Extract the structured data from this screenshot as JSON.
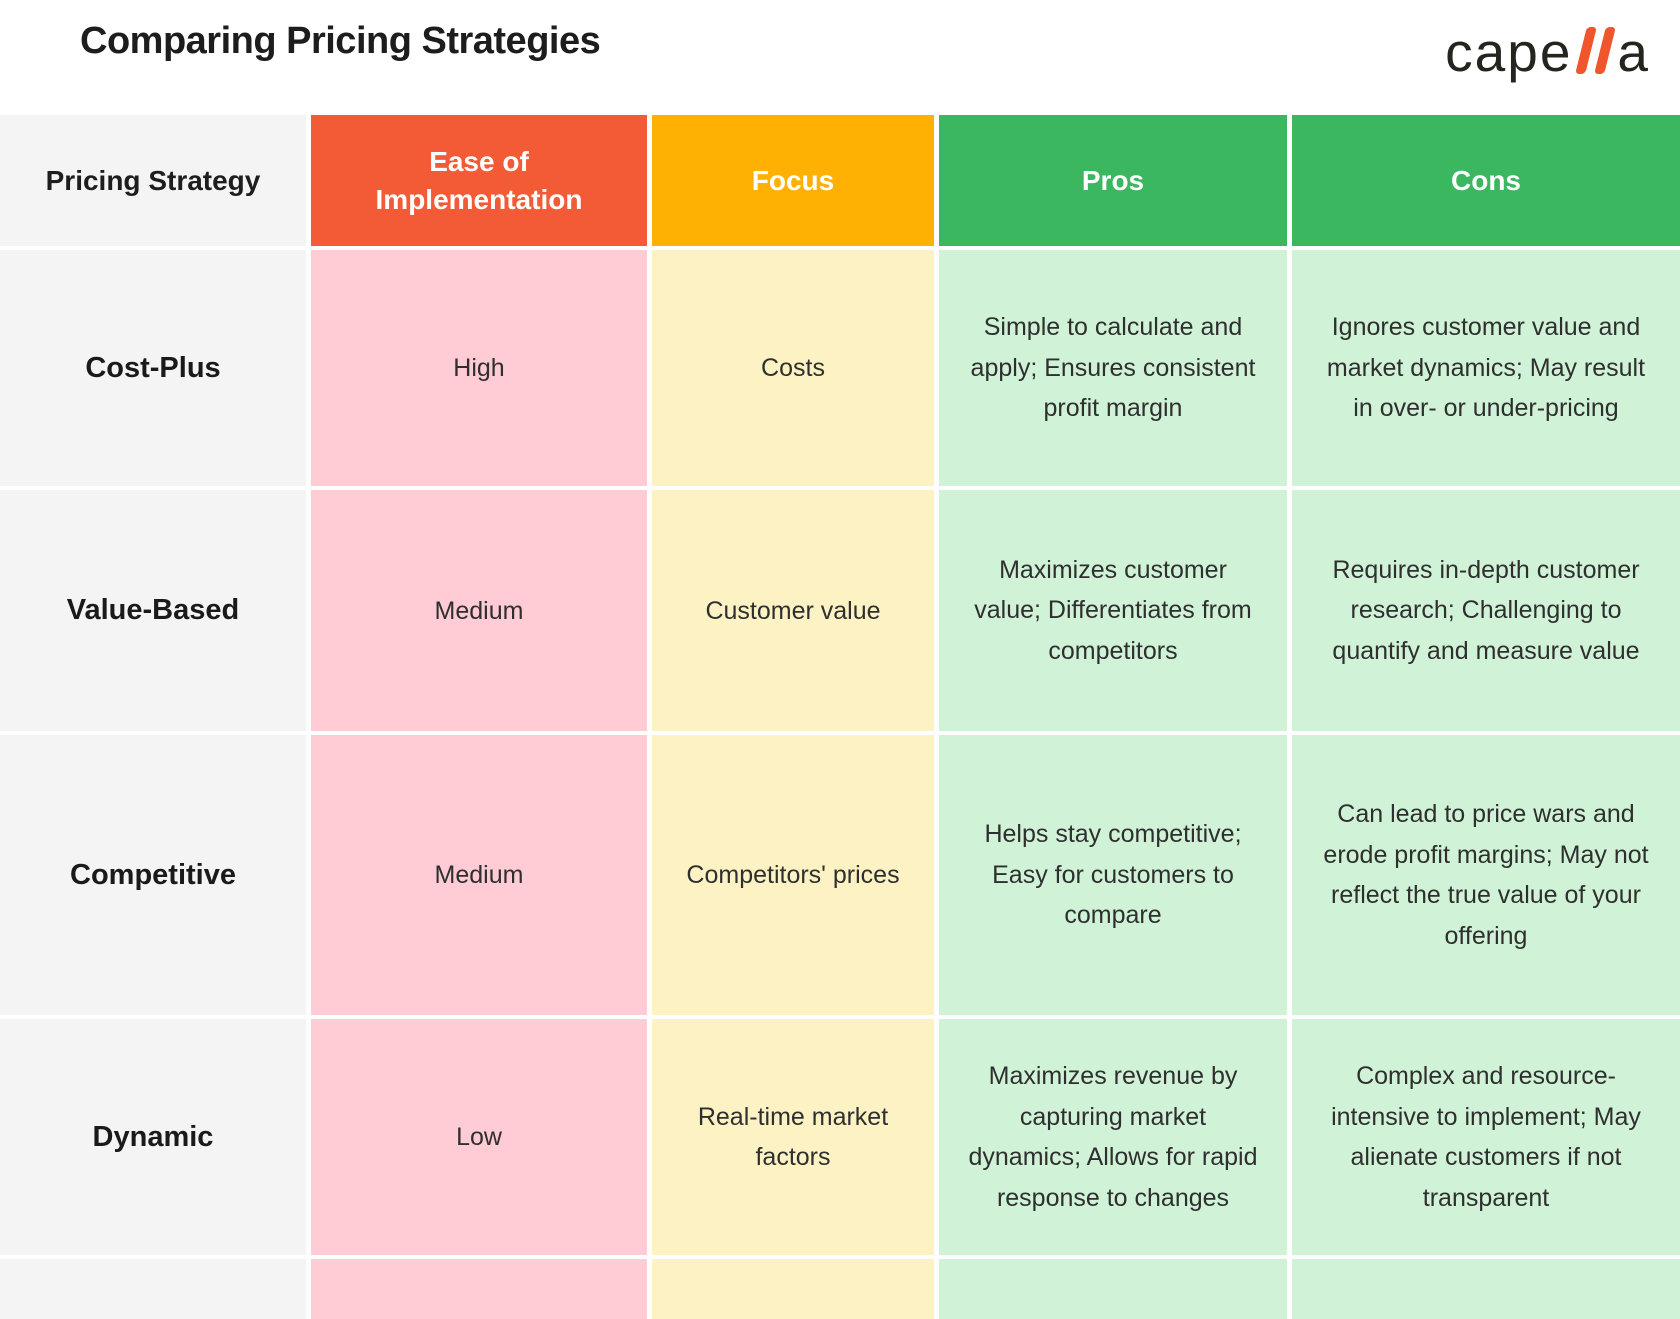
{
  "header": {
    "title": "Comparing Pricing Strategies",
    "logo": {
      "full_name": "capella",
      "text_left": "cape",
      "text_right": "a",
      "bar_color": "#F0552C"
    }
  },
  "colors": {
    "header_strategy_bg": "#F4F4F4",
    "header_ease_bg": "#F25B35",
    "header_focus_bg": "#FFB103",
    "header_pros_bg": "#3BB75F",
    "header_cons_bg": "#3BB75F",
    "cell_strategy_bg": "#F4F4F4",
    "cell_ease_bg": "#FFCBD5",
    "cell_focus_bg": "#FCF2C3",
    "cell_pros_cons_bg": "#D0F3D8",
    "title_text": "#1D1D1D",
    "header_text": "#FFFFFF",
    "body_text": "#2F2F2F"
  },
  "table": {
    "columns": [
      {
        "label": "Pricing Strategy"
      },
      {
        "label": "Ease of Implementation"
      },
      {
        "label": "Focus"
      },
      {
        "label": "Pros"
      },
      {
        "label": "Cons"
      }
    ],
    "rows": [
      {
        "strategy": "Cost-Plus",
        "ease": "High",
        "focus": "Costs",
        "pros": "Simple to calculate and apply; Ensures consistent profit margin",
        "cons": "Ignores customer value and market dynamics; May result in over- or under-pricing"
      },
      {
        "strategy": "Value-Based",
        "ease": "Medium",
        "focus": "Customer value",
        "pros": "Maximizes customer value; Differentiates from competitors",
        "cons": "Requires in-depth customer research; Challenging to quantify and measure value"
      },
      {
        "strategy": "Competitive",
        "ease": "Medium",
        "focus": "Competitors' prices",
        "pros": "Helps stay competitive; Easy for customers to compare",
        "cons": "Can lead to price wars and erode profit margins; May not reflect the true value of your offering"
      },
      {
        "strategy": "Dynamic",
        "ease": "Low",
        "focus": "Real-time market factors",
        "pros": "Maximizes revenue by capturing market dynamics; Allows for rapid response to changes",
        "cons": "Complex and resource-intensive to implement; May alienate customers if not transparent"
      }
    ]
  },
  "chart_data": {
    "type": "table",
    "title": "Comparing Pricing Strategies",
    "columns": [
      "Pricing Strategy",
      "Ease of Implementation",
      "Focus",
      "Pros",
      "Cons"
    ],
    "rows": [
      [
        "Cost-Plus",
        "High",
        "Costs",
        "Simple to calculate and apply; Ensures consistent profit margin",
        "Ignores customer value and market dynamics; May result in over- or under-pricing"
      ],
      [
        "Value-Based",
        "Medium",
        "Customer value",
        "Maximizes customer value; Differentiates from competitors",
        "Requires in-depth customer research; Challenging to quantify and measure value"
      ],
      [
        "Competitive",
        "Medium",
        "Competitors' prices",
        "Helps stay competitive; Easy for customers to compare",
        "Can lead to price wars and erode profit margins; May not reflect the true value of your offering"
      ],
      [
        "Dynamic",
        "Low",
        "Real-time market factors",
        "Maximizes revenue by capturing market dynamics; Allows for rapid response to changes",
        "Complex and resource-intensive to implement; May alienate customers if not transparent"
      ]
    ]
  }
}
